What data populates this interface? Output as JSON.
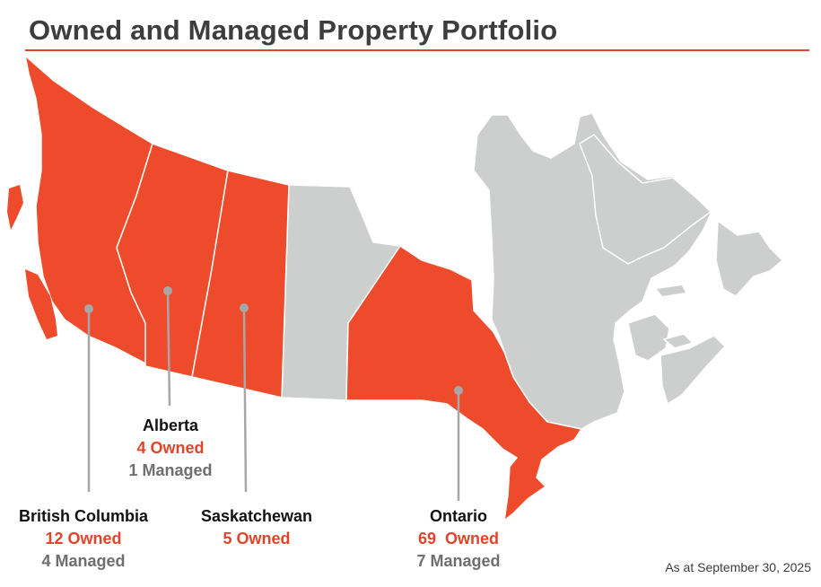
{
  "header": {
    "title": "Owned and Managed Property Portfolio"
  },
  "colors": {
    "accent": "#e0452a",
    "owned_region": "#ee4a2c",
    "other_region": "#cdcfcf",
    "managed_text": "#6e6e6e"
  },
  "provinces": [
    {
      "name": "British Columbia",
      "owned": "12 Owned",
      "managed": "4 Managed"
    },
    {
      "name": "Alberta",
      "owned": "4 Owned",
      "managed": "1 Managed"
    },
    {
      "name": "Saskatchewan",
      "owned": "5 Owned"
    },
    {
      "name": "Ontario",
      "owned": "69  Owned",
      "managed": "7 Managed"
    }
  ],
  "footer": {
    "as_at": "As at September 30, 2025"
  }
}
